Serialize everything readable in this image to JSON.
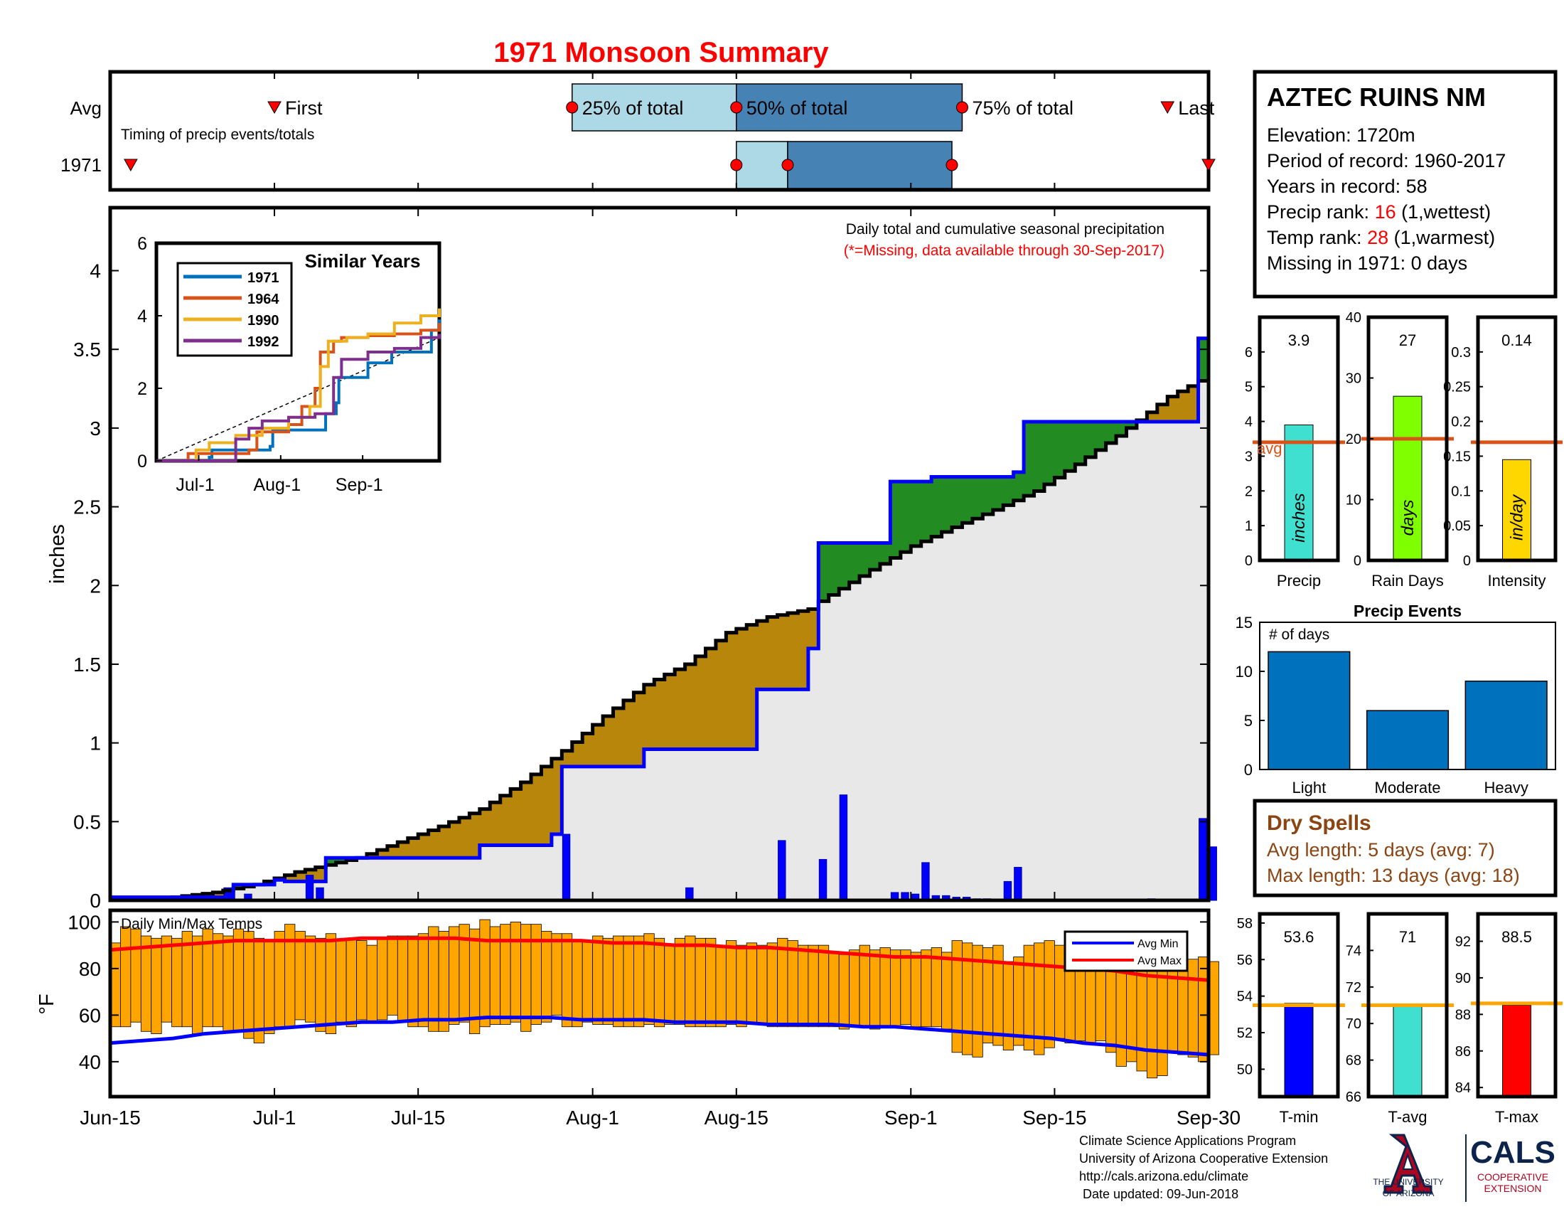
{
  "title": "1971 Monsoon Summary",
  "timing": {
    "note": "Timing of precip events/totals",
    "row_labels": [
      "Avg",
      "1971"
    ],
    "labels": {
      "first": "First",
      "p25": "25% of total",
      "p50": "50% of total",
      "p75": "75% of total",
      "last": "Last"
    },
    "avg": {
      "first": 16,
      "p25": 45,
      "p50": 61,
      "p75": 83,
      "last": 103
    },
    "year": {
      "first": 2,
      "p25": 61,
      "p50": 66,
      "p75": 82,
      "last": 107
    }
  },
  "station": {
    "name": "AZTEC RUINS NM",
    "elevation": "Elevation: 1720m",
    "period": "Period of record: 1960-2017",
    "years": "Years in record: 58",
    "precip_rank_prefix": "Precip rank: ",
    "precip_rank": "16",
    "precip_rank_suffix": " (1,wettest)",
    "temp_rank_prefix": "Temp rank: ",
    "temp_rank": "28",
    "temp_rank_suffix": " (1,warmest)",
    "missing": "Missing in 1971: 0 days"
  },
  "main_chart": {
    "note_line1": "Daily total and cumulative seasonal precipitation",
    "note_line2": "(*=Missing, data available through 30-Sep-2017)",
    "ylabel": "inches",
    "ylim": [
      0,
      4.4
    ],
    "yticks": [
      "0",
      "0.5",
      "1",
      "1.5",
      "2",
      "2.5",
      "3",
      "3.5",
      "4"
    ],
    "xticks": [
      "Jun-15",
      "Jul-1",
      "Jul-15",
      "Aug-1",
      "Aug-15",
      "Sep-1",
      "Sep-15",
      "Sep-30"
    ]
  },
  "chart_data": [
    {
      "type": "line",
      "title": "1971 Monsoon Summary",
      "ylabel": "inches",
      "ylim": [
        0,
        4.4
      ],
      "series": [
        {
          "name": "Avg cumulative",
          "x": [
            0,
            6,
            10,
            14,
            18,
            24,
            28,
            32,
            36,
            40,
            44,
            48,
            52,
            56,
            60,
            64,
            68,
            69,
            74,
            78,
            82,
            86,
            90,
            94,
            98,
            100,
            103,
            106,
            107
          ],
          "y": [
            0,
            0.02,
            0.05,
            0.1,
            0.18,
            0.27,
            0.37,
            0.47,
            0.58,
            0.75,
            0.95,
            1.17,
            1.37,
            1.5,
            1.7,
            1.8,
            1.85,
            1.9,
            2.1,
            2.25,
            2.37,
            2.48,
            2.6,
            2.77,
            2.95,
            3.05,
            3.2,
            3.3,
            3.4
          ]
        },
        {
          "name": "1971 cumulative",
          "x": [
            0,
            12,
            16,
            17,
            20,
            21,
            36,
            43,
            44,
            52,
            58,
            63,
            64,
            68,
            69,
            76,
            80,
            88,
            89,
            99,
            105,
            106,
            107
          ],
          "y": [
            0.02,
            0.1,
            0.13,
            0.12,
            0.12,
            0.27,
            0.35,
            0.42,
            0.85,
            0.96,
            0.96,
            1.34,
            1.34,
            1.6,
            2.27,
            2.66,
            2.69,
            2.72,
            3.04,
            3.04,
            3.04,
            3.57,
            3.9
          ]
        },
        {
          "name": "1971 daily",
          "x": [
            11,
            13,
            19,
            20,
            44,
            56,
            65,
            69,
            71,
            76,
            77,
            78,
            79,
            80,
            81,
            82,
            83,
            84,
            85,
            87,
            88,
            101,
            106,
            107
          ],
          "y": [
            0.08,
            0.04,
            0.16,
            0.08,
            0.42,
            0.08,
            0.38,
            0.26,
            0.67,
            0.05,
            0.05,
            0.04,
            0.24,
            0.03,
            0.03,
            0.02,
            0.02,
            0.01,
            0.01,
            0.12,
            0.21,
            0.01,
            0.52,
            0.34
          ]
        }
      ]
    },
    {
      "type": "line",
      "title": "Similar Years",
      "ylim": [
        0,
        6
      ],
      "yticks": [
        "0",
        "2",
        "4",
        "6"
      ],
      "xticks": [
        "Jul-1",
        "Aug-1",
        "Sep-1"
      ],
      "series": [
        {
          "name": "1971",
          "color": "#0072BD",
          "x": [
            0,
            20,
            21,
            43,
            44,
            64,
            68,
            69,
            80,
            89,
            104,
            107
          ],
          "y": [
            0,
            0.1,
            0.3,
            0.4,
            0.85,
            1.3,
            1.6,
            2.3,
            2.7,
            3.0,
            3.6,
            3.9
          ]
        },
        {
          "name": "1964",
          "color": "#D95319",
          "x": [
            0,
            10,
            12,
            35,
            38,
            50,
            55,
            60,
            62,
            67,
            70,
            80,
            90,
            100,
            107
          ],
          "y": [
            0,
            0,
            0.2,
            0.3,
            0.8,
            1.0,
            1.5,
            2.0,
            3.0,
            3.3,
            3.4,
            3.45,
            3.5,
            3.6,
            3.8
          ]
        },
        {
          "name": "1990",
          "color": "#EDB120",
          "x": [
            0,
            15,
            20,
            30,
            40,
            50,
            58,
            62,
            65,
            72,
            80,
            90,
            100,
            107
          ],
          "y": [
            0,
            0.3,
            0.5,
            0.7,
            0.9,
            1.2,
            1.5,
            2.6,
            3.3,
            3.4,
            3.5,
            3.8,
            4.0,
            4.2
          ]
        },
        {
          "name": "1992",
          "color": "#7E2F8E",
          "x": [
            0,
            25,
            30,
            35,
            40,
            50,
            60,
            67,
            70,
            80,
            90,
            100,
            107
          ],
          "y": [
            0,
            0,
            0.6,
            0.9,
            1.1,
            1.2,
            1.3,
            2.3,
            2.8,
            3.0,
            3.1,
            3.4,
            3.5
          ]
        }
      ]
    },
    {
      "type": "bar",
      "title": "Precip",
      "value_label": "3.9",
      "bar_text": "inches",
      "bar_color": "#40E0D0",
      "value": 3.9,
      "avg": 3.4,
      "avg_label": "avg",
      "ylim": [
        0,
        7
      ],
      "yticks": [
        "0",
        "1",
        "2",
        "3",
        "4",
        "5",
        "6"
      ]
    },
    {
      "type": "bar",
      "title": "Rain Days",
      "value_label": "27",
      "bar_text": "days",
      "bar_color": "#7FFF00",
      "value": 27,
      "avg": 20,
      "ylim": [
        0,
        40
      ],
      "yticks": [
        "0",
        "10",
        "20",
        "30",
        "40"
      ]
    },
    {
      "type": "bar",
      "title": "Intensity",
      "value_label": "0.14",
      "bar_text": "in/day",
      "bar_color": "#FFD700",
      "value": 0.145,
      "avg": 0.17,
      "ylim": [
        0,
        0.35
      ],
      "yticks": [
        "0",
        "0.05",
        "0.1",
        "0.15",
        "0.2",
        "0.25",
        "0.3"
      ]
    },
    {
      "type": "bar",
      "title": "Precip Events",
      "ylabel": "# of days",
      "categories": [
        "Light",
        "Moderate",
        "Heavy"
      ],
      "values": [
        12,
        6,
        9
      ],
      "ylim": [
        0,
        15
      ],
      "yticks": [
        "0",
        "5",
        "10",
        "15"
      ]
    },
    {
      "type": "bar",
      "title": "Daily Min/Max Temps",
      "ylabel": "°F",
      "ylim": [
        25,
        105
      ],
      "yticks": [
        "40",
        "60",
        "80",
        "100"
      ],
      "xticks": [
        "Jun-15",
        "Jul-1",
        "Jul-15",
        "Aug-1",
        "Aug-15",
        "Sep-1",
        "Sep-15",
        "Sep-30"
      ],
      "legend": [
        "Avg Min",
        "Avg Max"
      ],
      "daily_max": [
        91,
        98,
        97,
        94,
        93,
        94,
        93,
        96,
        94,
        97,
        95,
        94,
        97,
        96,
        93,
        92,
        96,
        99,
        96,
        94,
        93,
        95,
        92,
        93,
        92,
        90,
        93,
        94,
        94,
        94,
        95,
        98,
        96,
        98,
        99,
        97,
        101,
        98,
        99,
        100,
        99,
        99,
        96,
        95,
        95,
        92,
        92,
        94,
        93,
        94,
        94,
        94,
        95,
        93,
        90,
        93,
        94,
        93,
        93,
        90,
        92,
        90,
        91,
        90,
        91,
        93,
        92,
        90,
        90,
        90,
        87,
        86,
        88,
        90,
        88,
        89,
        88,
        88,
        87,
        88,
        89,
        87,
        92,
        91,
        90,
        89,
        90,
        83,
        85,
        90,
        91,
        92,
        90,
        88,
        88,
        90,
        87,
        85,
        80,
        78,
        80,
        82,
        82,
        84,
        87,
        84,
        85,
        83
      ],
      "daily_min": [
        55,
        55,
        57,
        53,
        52,
        57,
        55,
        55,
        52,
        55,
        55,
        53,
        53,
        50,
        48,
        52,
        55,
        55,
        58,
        57,
        53,
        52,
        57,
        55,
        58,
        57,
        58,
        60,
        57,
        55,
        55,
        53,
        53,
        56,
        57,
        52,
        55,
        56,
        56,
        57,
        53,
        56,
        57,
        60,
        55,
        55,
        57,
        56,
        56,
        55,
        55,
        55,
        56,
        55,
        56,
        56,
        55,
        55,
        55,
        55,
        56,
        55,
        56,
        56,
        55,
        55,
        55,
        55,
        55,
        55,
        55,
        54,
        55,
        55,
        54,
        55,
        55,
        56,
        55,
        55,
        55,
        54,
        44,
        43,
        42,
        48,
        47,
        45,
        47,
        45,
        43,
        46,
        50,
        48,
        49,
        48,
        49,
        44,
        38,
        40,
        36,
        33,
        34,
        44,
        43,
        42,
        40,
        43
      ],
      "avg_max": [
        88,
        89,
        90,
        91,
        92,
        92,
        92,
        92,
        93,
        93,
        93,
        93,
        92,
        92,
        92,
        92,
        91,
        91,
        90,
        90,
        89,
        89,
        88,
        87,
        86,
        85,
        85,
        84,
        83,
        82,
        81,
        80,
        79,
        77,
        76,
        75
      ],
      "avg_min": [
        48,
        49,
        50,
        52,
        53,
        54,
        55,
        56,
        57,
        57,
        58,
        58,
        59,
        59,
        59,
        58,
        58,
        58,
        57,
        57,
        57,
        56,
        56,
        56,
        55,
        55,
        54,
        53,
        52,
        51,
        50,
        48,
        47,
        45,
        44,
        43
      ]
    },
    {
      "type": "bar",
      "title": "T-min",
      "value_label": "53.6",
      "bar_color": "#0000FF",
      "value": 53.6,
      "avg": 53.5,
      "ylim": [
        48.5,
        58.5
      ],
      "yticks": [
        "50",
        "52",
        "54",
        "56",
        "58"
      ]
    },
    {
      "type": "bar",
      "title": "T-avg",
      "value_label": "71",
      "bar_color": "#40E0D0",
      "value": 71.0,
      "avg": 71.0,
      "ylim": [
        66,
        76
      ],
      "yticks": [
        "66",
        "68",
        "70",
        "72",
        "74"
      ]
    },
    {
      "type": "bar",
      "title": "T-max",
      "value_label": "88.5",
      "bar_color": "#FF0000",
      "value": 88.5,
      "avg": 88.6,
      "ylim": [
        83.5,
        93.5
      ],
      "yticks": [
        "84",
        "86",
        "88",
        "90",
        "92"
      ]
    }
  ],
  "dry_spells": {
    "title": "Dry Spells",
    "avg_length": "Avg length: 5 days (avg: 7)",
    "max_length": "Max length: 13 days (avg: 18)"
  },
  "footer": {
    "line1": "Climate Science Applications Program",
    "line2": "University of Arizona Cooperative Extension",
    "line3": "http://cals.arizona.edu/climate",
    "line4": " Date updated: 09-Jun-2018",
    "ua_line1": "THE UNIVERSITY",
    "ua_line2": "OF ARIZONA",
    "cals": "CALS",
    "cals_line1": "COOPERATIVE",
    "cals_line2": "EXTENSION"
  },
  "colors": {
    "title": "#ff0000",
    "light_blue": "#add8e6",
    "steel_blue": "#4682b4",
    "wetter": "#228b22",
    "drier": "#b8860b",
    "cum_fill": "#e8e8e8",
    "avg_line": "#d95319",
    "bars": "#0072bd",
    "temp_bar": "#ffa500",
    "dry": "#8b4513"
  }
}
